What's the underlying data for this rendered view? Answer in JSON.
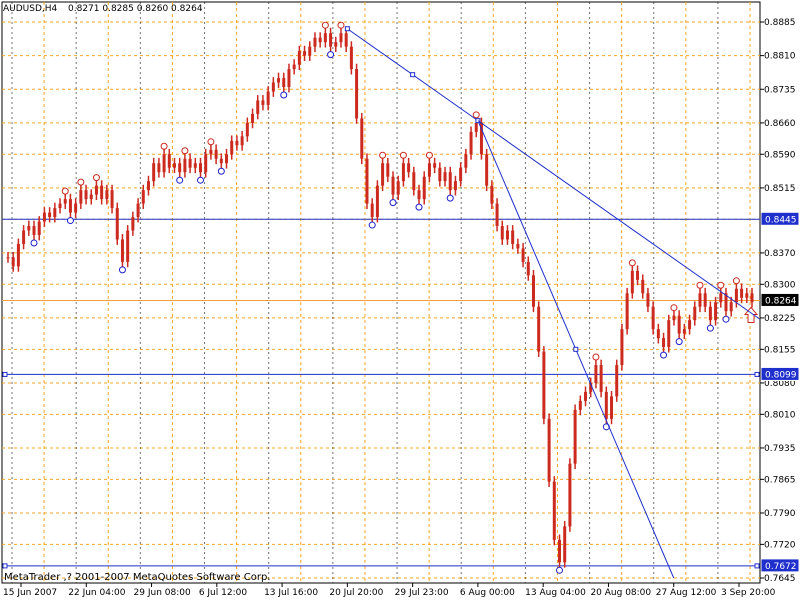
{
  "header": {
    "symbol": "AUDUSD,H4",
    "ohlc": "0.8271 0.8285 0.8260 0.8264"
  },
  "footer": {
    "copyright": "MetaTrader ,? 2001-2007 MetaQuotes Software Corp."
  },
  "colors": {
    "grid_h": "#f5a623",
    "grid_v_solid": "#000000",
    "candle": "#cc2a1f",
    "marker_top": "#cc2a1f",
    "marker_bottom": "#1f1fcc",
    "lines": "#1f2fcc",
    "price_line": "#f0a040",
    "tag_bg": "#1f2fcc"
  },
  "chart_data": {
    "type": "line",
    "title": "AUDUSD,H4",
    "y_ticks": [
      "0.8885",
      "0.8810",
      "0.8735",
      "0.8660",
      "0.8590",
      "0.8515",
      "0.8445",
      "0.8370",
      "0.8300",
      "0.8225",
      "0.8155",
      "0.8080",
      "0.8010",
      "0.7935",
      "0.7865",
      "0.7790",
      "0.7720",
      "0.7645"
    ],
    "x_ticks": [
      "15 Jun 2007",
      "22 Jun 04:00",
      "29 Jun 08:00",
      "6 Jul 12:00",
      "13 Jul 16:00",
      "20 Jul 20:00",
      "29 Jul 23:00",
      "6 Aug 00:00",
      "13 Aug 04:00",
      "20 Aug 08:00",
      "27 Aug 12:00",
      "3 Sep 20:00"
    ],
    "ylim": [
      0.7645,
      0.8885
    ],
    "price_tags": [
      {
        "value": 0.8445,
        "label": "0.8445",
        "kind": "hline"
      },
      {
        "value": 0.8264,
        "label": "0.8264",
        "kind": "current"
      },
      {
        "value": 0.8099,
        "label": "0.8099",
        "kind": "hline"
      },
      {
        "value": 0.7672,
        "label": "0.7672",
        "kind": "hline"
      }
    ],
    "series": [
      {
        "values": [
          0.836,
          0.834,
          0.839,
          0.842,
          0.843,
          0.841,
          0.844,
          0.846,
          0.845,
          0.847,
          0.848,
          0.849,
          0.846,
          0.848,
          0.851,
          0.849,
          0.85,
          0.852,
          0.849,
          0.851,
          0.847,
          0.84,
          0.835,
          0.842,
          0.845,
          0.848,
          0.851,
          0.853,
          0.857,
          0.855,
          0.859,
          0.856,
          0.857,
          0.855,
          0.858,
          0.856,
          0.857,
          0.855,
          0.859,
          0.86,
          0.858,
          0.857,
          0.859,
          0.862,
          0.861,
          0.863,
          0.866,
          0.868,
          0.871,
          0.87,
          0.873,
          0.875,
          0.876,
          0.874,
          0.878,
          0.879,
          0.882,
          0.881,
          0.883,
          0.885,
          0.884,
          0.886,
          0.883,
          0.884,
          0.886,
          0.883,
          0.878,
          0.867,
          0.858,
          0.848,
          0.845,
          0.852,
          0.857,
          0.854,
          0.85,
          0.853,
          0.857,
          0.855,
          0.851,
          0.849,
          0.854,
          0.857,
          0.856,
          0.853,
          0.855,
          0.851,
          0.853,
          0.856,
          0.859,
          0.864,
          0.866,
          0.859,
          0.852,
          0.848,
          0.843,
          0.84,
          0.842,
          0.839,
          0.838,
          0.835,
          0.832,
          0.825,
          0.815,
          0.8,
          0.786,
          0.773,
          0.768,
          0.776,
          0.79,
          0.802,
          0.804,
          0.806,
          0.808,
          0.812,
          0.806,
          0.8,
          0.805,
          0.812,
          0.82,
          0.828,
          0.833,
          0.831,
          0.828,
          0.825,
          0.82,
          0.818,
          0.816,
          0.822,
          0.823,
          0.819,
          0.82,
          0.822,
          0.825,
          0.828,
          0.825,
          0.822,
          0.826,
          0.828,
          0.824,
          0.826,
          0.829,
          0.827,
          0.828,
          0.826
        ]
      }
    ],
    "trendlines": [
      {
        "from": [
          "20 Jul 20:00",
          0.887
        ],
        "to": [
          "6 Aug 00:00",
          0.8665
        ]
      },
      {
        "from": [
          "6 Aug 00:00",
          0.8665
        ],
        "to": [
          "27 Aug 12:00",
          0.7645
        ]
      }
    ]
  }
}
